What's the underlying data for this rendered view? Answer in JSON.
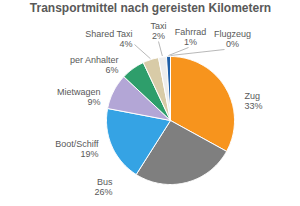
{
  "chart_data": {
    "type": "pie",
    "title": "Transportmittel nach gereisten Kilometern",
    "categories": [
      "Zug",
      "Bus",
      "Boot/Schiff",
      "Mietwagen",
      "per Anhalter",
      "Shared Taxi",
      "Taxi",
      "Fahrrad",
      "Flugzeug"
    ],
    "values": [
      33,
      26,
      19,
      9,
      6,
      4,
      2,
      1,
      0
    ],
    "value_labels": [
      "33%",
      "26%",
      "19%",
      "9%",
      "6%",
      "4%",
      "2%",
      "1%",
      "0%"
    ],
    "colors": [
      "#F7941D",
      "#7F7F7F",
      "#35A3E4",
      "#B3A6D6",
      "#2E9E6B",
      "#D8CBA7",
      "#EDEDED",
      "#1F5FA8",
      "#2E2E8B"
    ],
    "data_labels": true
  }
}
